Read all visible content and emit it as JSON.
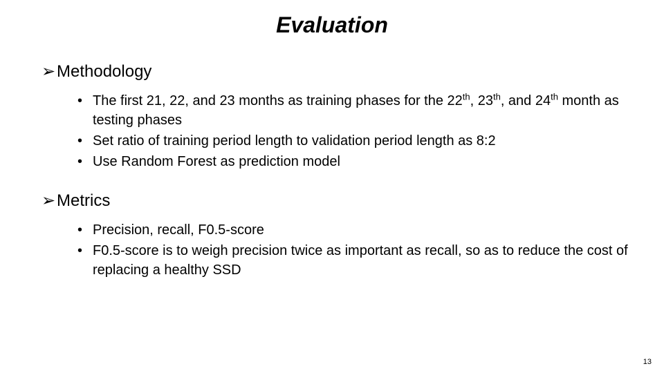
{
  "title": "Evaluation",
  "sections": [
    {
      "heading": "Methodology",
      "bullets": [
        "The first 21, 22, and 23 months as training phases for the 22{th}, 23{th}, and 24{th} month as testing phases",
        "Set ratio of training period length to validation period length as 8:2",
        "Use Random Forest as prediction model"
      ]
    },
    {
      "heading": "Metrics",
      "bullets": [
        "Precision, recall, F0.5-score",
        "F0.5-score is to weigh precision twice as important as recall, so as to reduce the cost of replacing a healthy SSD"
      ]
    }
  ],
  "page_number": "13",
  "arrow_glyph": "➢",
  "colors": {
    "text": "#000000",
    "background": "#ffffff"
  },
  "fontsizes": {
    "title": 32,
    "heading": 24,
    "bullet": 20,
    "pagenum": 11
  }
}
